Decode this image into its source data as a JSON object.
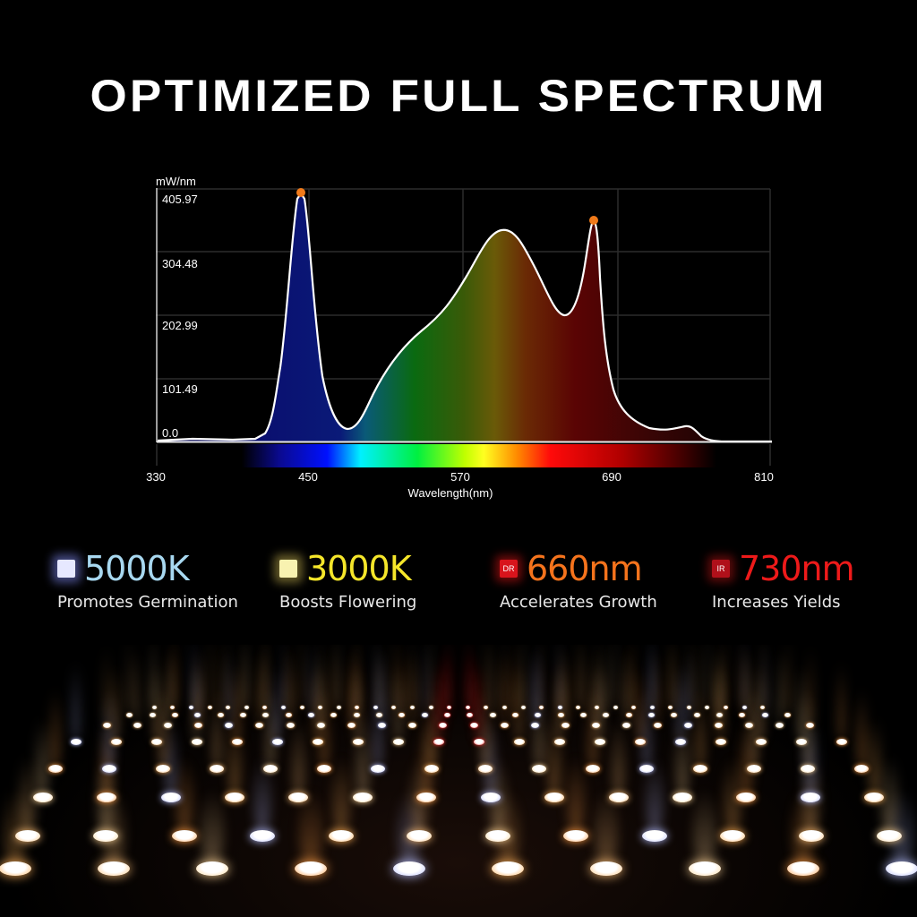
{
  "title": "OPTIMIZED FULL SPECTRUM",
  "chart_data": {
    "type": "area",
    "title": "",
    "xlabel": "Wavelength(nm)",
    "ylabel": "mW/nm",
    "x_ticks": [
      "330",
      "450",
      "570",
      "690",
      "810"
    ],
    "y_ticks": [
      "405.97",
      "304.48",
      "202.99",
      "101.49",
      "0.0"
    ],
    "xlim": [
      330,
      810
    ],
    "ylim": [
      0,
      405.97
    ],
    "grid": true,
    "x": [
      330,
      380,
      400,
      415,
      425,
      435,
      440,
      447,
      452,
      460,
      470,
      478,
      490,
      500,
      520,
      540,
      560,
      575,
      590,
      605,
      620,
      635,
      640,
      645,
      650,
      660,
      665,
      672,
      680,
      690,
      700,
      710,
      720,
      735,
      750,
      770,
      800,
      810
    ],
    "values": [
      3,
      2,
      6,
      30,
      120,
      260,
      360,
      405.97,
      360,
      180,
      60,
      20,
      25,
      70,
      130,
      185,
      250,
      330,
      350,
      310,
      240,
      200,
      205,
      240,
      300,
      385,
      375,
      290,
      200,
      100,
      45,
      22,
      15,
      12,
      18,
      3,
      1,
      1
    ],
    "peaks": [
      {
        "x": 447,
        "y": 405.97,
        "color": "#f07a1a"
      },
      {
        "x": 660,
        "y": 385,
        "color": "#f07a1a"
      }
    ],
    "spectrum_bar": {
      "from_nm": 395,
      "to_nm": 765
    }
  },
  "features": [
    {
      "value": "5000K",
      "desc": "Promotes Germination",
      "badge": "",
      "value_color": "#a8d8f0",
      "badge_color": "#e6e8ff"
    },
    {
      "value": "3000K",
      "desc": "Boosts Flowering",
      "badge": "",
      "value_color": "#f5e62a",
      "badge_color": "#f8f2b0"
    },
    {
      "value": "660nm",
      "desc": "Accelerates Growth",
      "badge": "DR",
      "value_color": "#f5731c",
      "badge_color": "#d8141c"
    },
    {
      "value": "730nm",
      "desc": "Increases Yields",
      "badge": "IR",
      "value_color": "#ee1a1a",
      "badge_color": "#b0101a"
    }
  ]
}
